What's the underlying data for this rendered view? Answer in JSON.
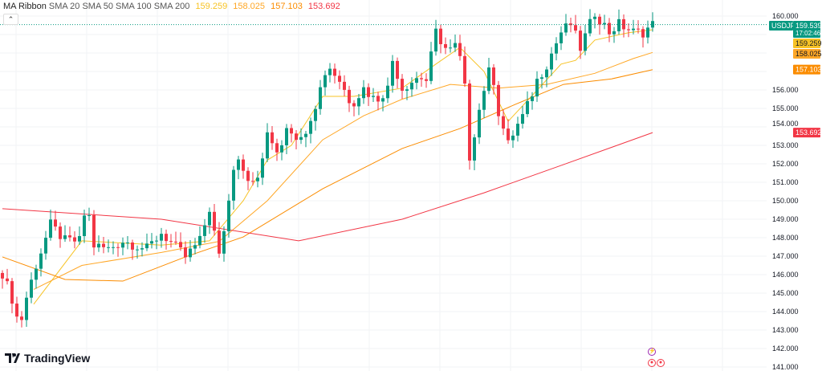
{
  "legend": {
    "name": "MA Ribbon",
    "params": "SMA 20 SMA 50 SMA 100 SMA 200",
    "values": [
      "159.259",
      "158.025",
      "157.103",
      "153.692"
    ]
  },
  "collapse_icon": "chevron-up-icon",
  "logo": "TradingView",
  "symbol": "USDJPY",
  "last_price": "159.539",
  "countdown": "17:02:46",
  "colors": {
    "up": "#089981",
    "down": "#f23645",
    "sma20": "#f7c325",
    "sma50": "#ffa726",
    "sma100": "#fb8c00",
    "sma200": "#f23645",
    "price_line": "#089981"
  },
  "chart_data": {
    "type": "candlestick",
    "title": "USDJPY",
    "ylim": [
      141,
      160.5
    ],
    "y_ticks": [
      "160.000",
      "156.000",
      "155.000",
      "154.000",
      "153.000",
      "152.000",
      "151.000",
      "150.000",
      "149.000",
      "148.000",
      "147.000",
      "146.000",
      "145.000",
      "144.000",
      "143.000",
      "142.000",
      "141.000"
    ],
    "y_tick_values": [
      160,
      156,
      155,
      154,
      153,
      152,
      151,
      150,
      149,
      148,
      147,
      146,
      145,
      144,
      143,
      142,
      141
    ],
    "bars": 136,
    "price_path": [
      [
        0,
        146.09
      ],
      [
        2.5,
        144.35
      ],
      [
        3.5,
        143.04
      ],
      [
        5,
        144.78
      ],
      [
        7,
        146.52
      ],
      [
        10,
        148.7
      ],
      [
        13,
        147.83
      ],
      [
        16.5,
        147.83
      ],
      [
        17.5,
        150.65
      ],
      [
        18.5,
        147.61
      ],
      [
        22,
        147.39
      ],
      [
        25,
        147.83
      ],
      [
        30,
        147.39
      ],
      [
        33,
        148.26
      ],
      [
        38,
        146.96
      ],
      [
        41,
        147.83
      ],
      [
        43,
        149.57
      ],
      [
        45,
        146.96
      ],
      [
        47,
        150.0
      ],
      [
        48.5,
        152.83
      ],
      [
        50,
        151.74
      ],
      [
        52.5,
        150.65
      ],
      [
        55,
        153.48
      ],
      [
        57.5,
        152.61
      ],
      [
        59,
        154.13
      ],
      [
        62,
        153.26
      ],
      [
        65,
        155.22
      ],
      [
        67.5,
        157.39
      ],
      [
        70,
        156.52
      ],
      [
        72.5,
        155.22
      ],
      [
        75,
        156.09
      ],
      [
        77.5,
        155.43
      ],
      [
        80,
        156.09
      ],
      [
        81,
        157.61
      ],
      [
        83,
        156.09
      ],
      [
        86.5,
        156.74
      ],
      [
        88,
        156.52
      ],
      [
        90,
        159.13
      ],
      [
        92.5,
        158.04
      ],
      [
        94.5,
        158.48
      ],
      [
        96,
        156.09
      ],
      [
        97,
        152.39
      ],
      [
        98.5,
        154.35
      ],
      [
        100,
        156.09
      ],
      [
        101.5,
        157.39
      ],
      [
        103,
        154.78
      ],
      [
        105,
        153.04
      ],
      [
        106.5,
        153.91
      ],
      [
        108.5,
        154.78
      ],
      [
        111,
        156.52
      ],
      [
        113,
        157.39
      ],
      [
        116,
        159.13
      ],
      [
        118,
        159.57
      ],
      [
        120,
        158.26
      ],
      [
        123,
        160.2
      ],
      [
        126,
        159.13
      ],
      [
        128,
        159.57
      ],
      [
        131,
        159.13
      ],
      [
        133,
        159.13
      ],
      [
        135,
        159.54
      ]
    ],
    "series": [
      {
        "name": "SMA 20",
        "value": 159.259,
        "path": [
          [
            6.5,
            144.4
          ],
          [
            16.5,
            147.83
          ],
          [
            33,
            147.6
          ],
          [
            43,
            147.83
          ],
          [
            50,
            150.0
          ],
          [
            55,
            152.2
          ],
          [
            60,
            153.0
          ],
          [
            66.5,
            155.65
          ],
          [
            73,
            155.65
          ],
          [
            83,
            156.1
          ],
          [
            90,
            157.4
          ],
          [
            95,
            158.3
          ],
          [
            100,
            157.0
          ],
          [
            105,
            154.3
          ],
          [
            110,
            155.7
          ],
          [
            116,
            157.4
          ],
          [
            119,
            157.6
          ],
          [
            123,
            158.7
          ],
          [
            130,
            159.1
          ],
          [
            135,
            159.26
          ]
        ]
      },
      {
        "name": "SMA 50",
        "value": 158.025,
        "path": [
          [
            6.5,
            145.2
          ],
          [
            16.5,
            146.5
          ],
          [
            33,
            147.2
          ],
          [
            45,
            147.8
          ],
          [
            55,
            150.0
          ],
          [
            66.5,
            153.3
          ],
          [
            75,
            154.6
          ],
          [
            83,
            155.5
          ],
          [
            93,
            156.3
          ],
          [
            103,
            156.1
          ],
          [
            113,
            156.3
          ],
          [
            123,
            156.9
          ],
          [
            131,
            157.7
          ],
          [
            135,
            158.03
          ]
        ]
      },
      {
        "name": "SMA 100",
        "value": 157.103,
        "path": [
          [
            0,
            146.96
          ],
          [
            13,
            145.74
          ],
          [
            25,
            145.65
          ],
          [
            38,
            146.96
          ],
          [
            50,
            148.04
          ],
          [
            66.5,
            150.65
          ],
          [
            83,
            152.83
          ],
          [
            95,
            153.91
          ],
          [
            106.5,
            155.22
          ],
          [
            116.5,
            156.3
          ],
          [
            126.5,
            156.6
          ],
          [
            135,
            157.1
          ]
        ]
      },
      {
        "name": "SMA 200",
        "value": 153.692,
        "path": [
          [
            0,
            149.57
          ],
          [
            33,
            149.0
          ],
          [
            61.5,
            147.83
          ],
          [
            83,
            149.0
          ],
          [
            100,
            150.43
          ],
          [
            116.5,
            151.96
          ],
          [
            135,
            153.69
          ]
        ]
      }
    ]
  }
}
